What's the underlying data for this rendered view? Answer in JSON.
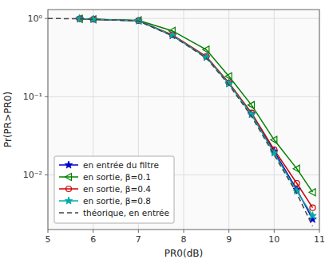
{
  "chart_data": {
    "type": "line",
    "x_label": "PR0(dB)",
    "y_label": "Pr(PR>PR0)",
    "log": "y",
    "grid": true,
    "legend": "lower-left",
    "xlim": [
      5,
      11
    ],
    "ylim": [
      0.002,
      1.3
    ],
    "xticks": [
      5,
      6,
      7,
      8,
      9,
      10,
      11
    ],
    "yticks": [
      {
        "value": 0.01,
        "label": "10⁻²"
      },
      {
        "value": 0.1,
        "label": "10⁻¹"
      },
      {
        "value": 1,
        "label": "10⁰"
      }
    ],
    "series": [
      {
        "name": "en entrée du filtre",
        "color": "#0000cc",
        "marker": "star",
        "line_style": "solid",
        "x": [
          5.7,
          6.0,
          7.0,
          7.75,
          8.5,
          9.0,
          9.5,
          10.0,
          10.5,
          10.85
        ],
        "values": [
          0.99,
          0.975,
          0.935,
          0.605,
          0.32,
          0.148,
          0.06,
          0.02,
          0.0065,
          0.0027
        ]
      },
      {
        "name": "en sortie, β=0.1",
        "color": "#008000",
        "marker": "triangle-left-open",
        "line_style": "solid",
        "x": [
          5.7,
          6.0,
          7.0,
          7.75,
          8.5,
          9.0,
          9.5,
          10.0,
          10.5,
          10.85
        ],
        "values": [
          0.99,
          0.975,
          0.945,
          0.695,
          0.4,
          0.182,
          0.078,
          0.028,
          0.012,
          0.006
        ]
      },
      {
        "name": "en sortie, β=0.4",
        "color": "#cc0000",
        "marker": "circle-open",
        "line_style": "solid",
        "x": [
          5.7,
          6.0,
          7.0,
          7.75,
          8.5,
          9.0,
          9.5,
          10.0,
          10.5,
          10.85
        ],
        "values": [
          0.99,
          0.975,
          0.938,
          0.618,
          0.326,
          0.15,
          0.062,
          0.021,
          0.0078,
          0.0038
        ]
      },
      {
        "name": "en sortie, β=0.8",
        "color": "#00aaaa",
        "marker": "star",
        "line_style": "solid",
        "x": [
          5.7,
          6.0,
          7.0,
          7.75,
          8.5,
          9.0,
          9.5,
          10.0,
          10.5,
          10.85
        ],
        "values": [
          0.99,
          0.975,
          0.934,
          0.608,
          0.318,
          0.146,
          0.059,
          0.019,
          0.0062,
          0.003
        ]
      },
      {
        "name": "théorique, en entrée",
        "color": "#444444",
        "marker": "none",
        "line_style": "dashed",
        "x": [
          5.0,
          5.7,
          6.0,
          7.0,
          7.75,
          8.5,
          9.0,
          9.5,
          10.0,
          10.5,
          10.85
        ],
        "values": [
          1.0,
          0.99,
          0.975,
          0.928,
          0.598,
          0.312,
          0.142,
          0.056,
          0.018,
          0.0058,
          0.0022
        ]
      }
    ]
  }
}
